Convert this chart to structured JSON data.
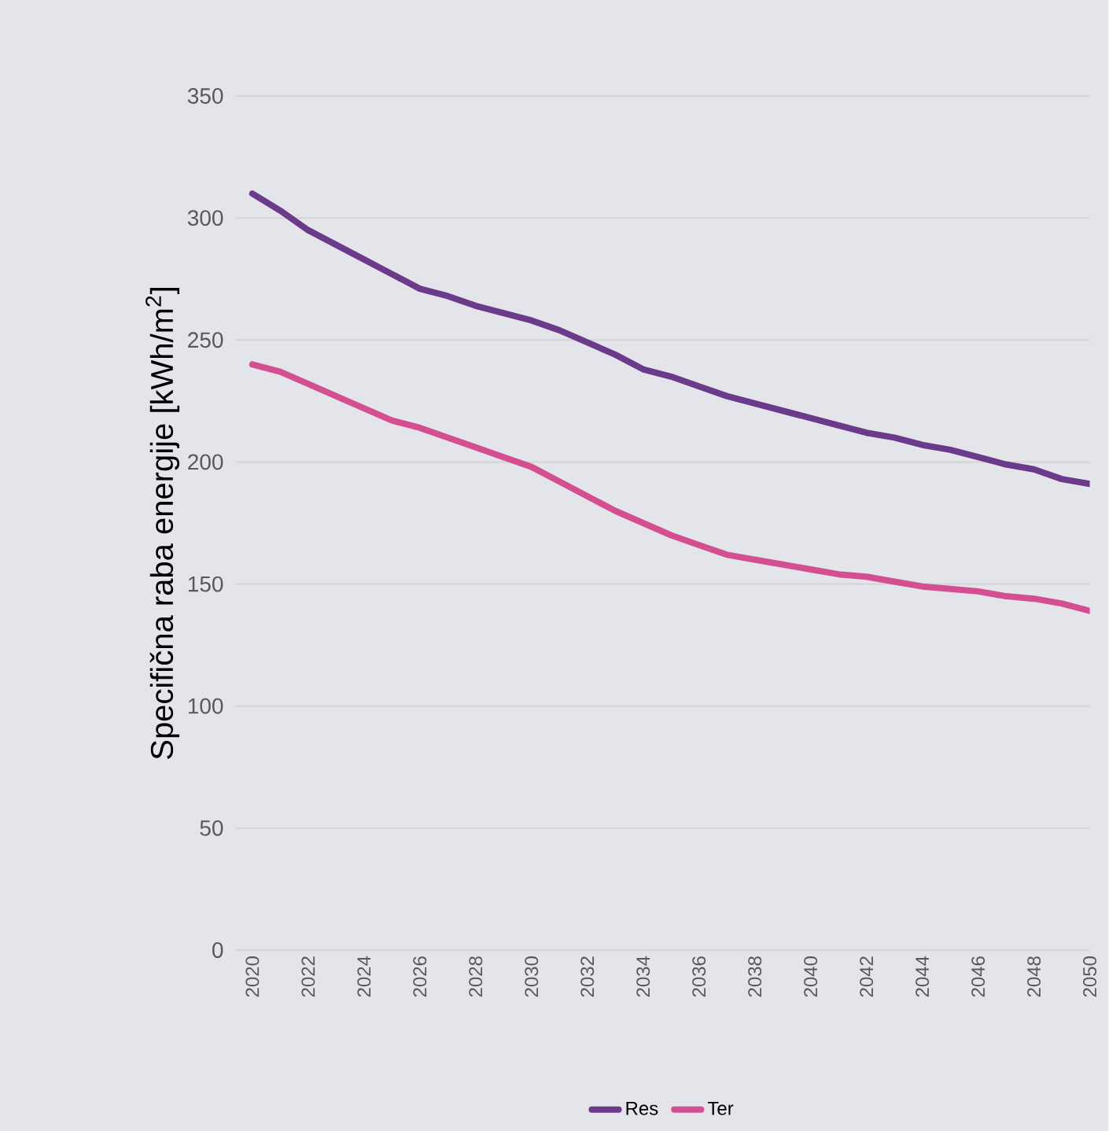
{
  "chart_data": {
    "type": "line",
    "ylabel": "Specifična raba energije  [kWh/m$^{2}$]",
    "categories": [
      "2020",
      null,
      "2022",
      null,
      "2024",
      null,
      "2026",
      null,
      "2028",
      null,
      "2030",
      null,
      "2032",
      null,
      "2034",
      null,
      "2036",
      null,
      "2038",
      null,
      "2040",
      null,
      "2042",
      null,
      "2044",
      null,
      "2046",
      null,
      "2048",
      null,
      "2050"
    ],
    "series": [
      {
        "name": "Res",
        "color": "#6b3a8a",
        "values": [
          310,
          303,
          295,
          289,
          283,
          277,
          271,
          268,
          264,
          261,
          258,
          254,
          249,
          244,
          238,
          235,
          231,
          227,
          224,
          221,
          218,
          215,
          212,
          210,
          207,
          205,
          202,
          199,
          197,
          193,
          191
        ]
      },
      {
        "name": "Ter",
        "color": "#d44f92",
        "values": [
          240,
          237,
          232,
          227,
          222,
          217,
          214,
          210,
          206,
          202,
          198,
          192,
          186,
          180,
          175,
          170,
          166,
          162,
          160,
          158,
          156,
          154,
          153,
          151,
          149,
          148,
          147,
          145,
          144,
          142,
          139
        ]
      }
    ],
    "ylim": [
      0,
      350
    ],
    "yticks": [
      0,
      50,
      100,
      150,
      200,
      250,
      300,
      350
    ],
    "grid": "y",
    "legend": "bottom",
    "marker": "none",
    "line_style": "solid"
  }
}
